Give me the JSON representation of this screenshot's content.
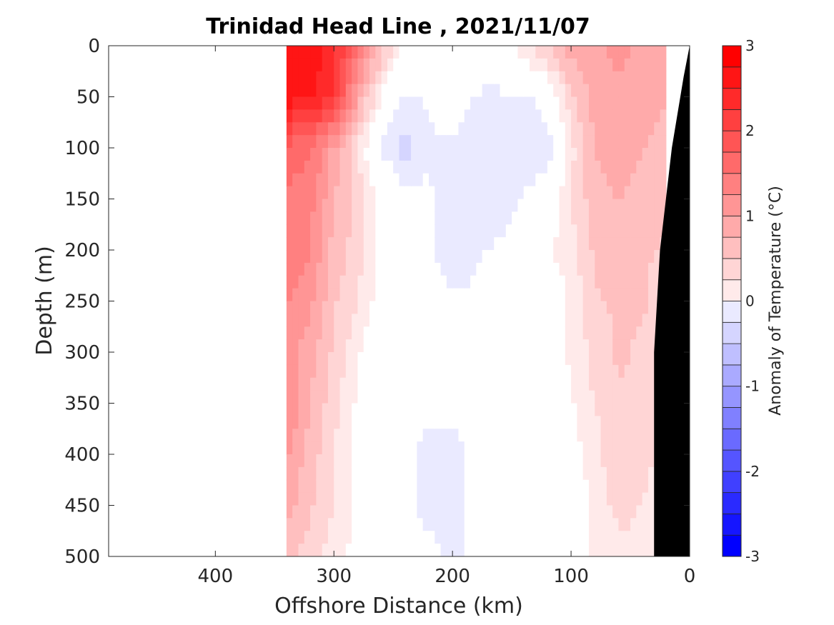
{
  "chart_data": {
    "type": "heatmap",
    "title": "Trinidad Head Line , 2021/11/07",
    "xlabel": "Offshore Distance (km)",
    "ylabel": "Depth (m)",
    "xlim": [
      490,
      0
    ],
    "ylim": [
      500,
      0
    ],
    "x_ticks": [
      400,
      300,
      200,
      100,
      0
    ],
    "y_ticks": [
      0,
      50,
      100,
      150,
      200,
      250,
      300,
      350,
      400,
      450,
      500
    ],
    "colorbar": {
      "label": "Anomaly of Temperature (°C)",
      "range": [
        -3,
        3
      ],
      "step": 0.25,
      "ticks": [
        3,
        2,
        1,
        0,
        -1,
        -2,
        -3
      ],
      "tick_labels": [
        "3",
        "2",
        "1",
        "0",
        "-1",
        "-2",
        "-3"
      ],
      "neg_color": "#0000ff",
      "pos_color": "#ff0000"
    },
    "data_extent_km": [
      0,
      340
    ],
    "columns_km": [
      340,
      320,
      300,
      280,
      260,
      240,
      220,
      200,
      180,
      160,
      140,
      120,
      100,
      80,
      60,
      40,
      20
    ],
    "depths_m": [
      0,
      50,
      100,
      150,
      200,
      250,
      300,
      350,
      400,
      450,
      500
    ],
    "anomaly_c": [
      [
        2.9,
        2.9,
        2.6,
        1.8,
        0.9,
        0.1,
        0.0,
        0.0,
        0.1,
        0.1,
        0.4,
        0.8,
        1.1,
        1.2,
        1.3,
        1.2,
        1.0
      ],
      [
        2.9,
        2.8,
        2.5,
        1.2,
        0.2,
        -0.3,
        -0.2,
        -0.1,
        -0.3,
        -0.3,
        -0.3,
        -0.1,
        0.7,
        1.1,
        1.2,
        1.1,
        1.0
      ],
      [
        1.9,
        1.8,
        1.2,
        0.5,
        -0.3,
        -0.6,
        -0.3,
        -0.3,
        -0.4,
        -0.5,
        -0.5,
        -0.4,
        0.4,
        1.0,
        1.1,
        1.0,
        0.9
      ],
      [
        1.7,
        1.6,
        1.0,
        0.7,
        0.1,
        -0.1,
        -0.2,
        -0.4,
        -0.4,
        -0.4,
        -0.2,
        0.0,
        0.5,
        0.9,
        1.0,
        0.9,
        0.8
      ],
      [
        1.7,
        1.5,
        0.9,
        0.6,
        0.2,
        -0.1,
        -0.2,
        -0.4,
        -0.3,
        -0.2,
        0.0,
        0.2,
        0.4,
        0.8,
        0.9,
        0.8,
        0.7
      ],
      [
        1.5,
        1.3,
        0.8,
        0.5,
        0.1,
        -0.1,
        -0.2,
        -0.2,
        -0.2,
        0.0,
        0.1,
        0.0,
        0.3,
        0.7,
        0.8,
        0.8,
        0.6
      ],
      [
        1.4,
        1.1,
        0.7,
        0.3,
        0.0,
        -0.1,
        -0.2,
        -0.1,
        -0.1,
        -0.2,
        -0.1,
        0.0,
        0.3,
        0.6,
        0.8,
        0.7,
        0.5
      ],
      [
        1.5,
        1.0,
        0.6,
        0.2,
        -0.1,
        -0.2,
        -0.2,
        -0.2,
        -0.2,
        -0.1,
        -0.2,
        -0.1,
        0.2,
        0.5,
        0.7,
        0.6,
        0.4
      ],
      [
        1.3,
        0.9,
        0.5,
        0.2,
        -0.1,
        -0.2,
        -0.3,
        -0.3,
        -0.2,
        -0.1,
        -0.2,
        -0.1,
        0.1,
        0.4,
        0.7,
        0.6,
        0.4
      ],
      [
        1.1,
        0.8,
        0.5,
        0.2,
        -0.1,
        -0.2,
        -0.3,
        -0.3,
        -0.2,
        -0.1,
        -0.2,
        -0.1,
        0.1,
        0.3,
        0.6,
        0.5,
        0.3
      ],
      [
        0.9,
        0.6,
        0.4,
        0.1,
        -0.1,
        -0.2,
        -0.2,
        -0.3,
        -0.2,
        -0.1,
        -0.2,
        -0.1,
        0.1,
        0.3,
        0.4,
        0.4,
        0.3
      ]
    ],
    "land_polygon": [
      [
        0,
        0
      ],
      [
        0,
        500
      ],
      [
        30,
        500
      ],
      [
        30,
        300
      ],
      [
        25,
        200
      ],
      [
        20,
        150
      ],
      [
        15,
        100
      ],
      [
        5,
        30
      ]
    ]
  }
}
